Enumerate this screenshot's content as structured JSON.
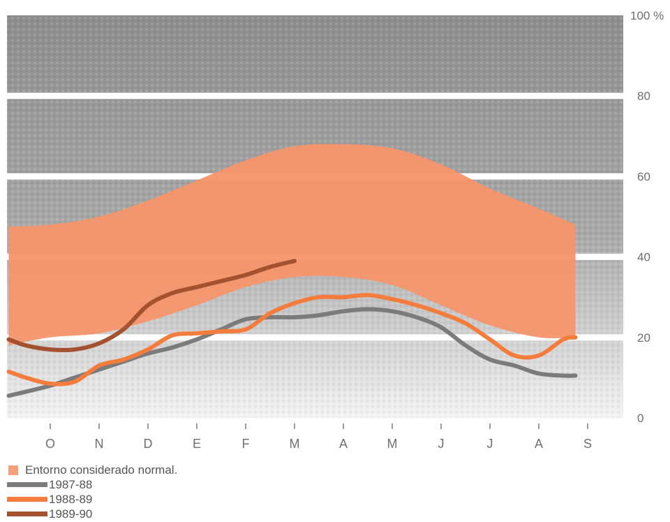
{
  "chart_data": {
    "type": "line",
    "title": "",
    "xlabel": "",
    "ylabel": "",
    "categories": [
      "O",
      "N",
      "D",
      "E",
      "F",
      "M",
      "A",
      "M",
      "J",
      "J",
      "A",
      "S"
    ],
    "y_tick_labels": [
      "0",
      "20",
      "40",
      "60",
      "80",
      "100 %"
    ],
    "y_tick_values": [
      0,
      20,
      40,
      60,
      80,
      100
    ],
    "ylim": [
      0,
      100
    ],
    "grid": true,
    "normal_range": {
      "name": "Entorno considerado normal.",
      "color": "#f4956a",
      "x": [
        -0.85,
        0,
        1,
        2,
        3,
        4,
        5,
        6,
        7,
        8,
        9,
        10,
        10.75
      ],
      "upper": [
        47.5,
        48,
        50,
        54,
        59,
        64,
        67.5,
        68,
        67,
        63,
        57,
        52,
        48
      ],
      "lower": [
        18,
        20,
        21,
        24,
        28,
        32.5,
        35,
        35,
        33,
        28,
        23,
        20,
        20
      ]
    },
    "series": [
      {
        "name": "1987-88",
        "color": "#7b7b7b",
        "x": [
          -0.85,
          -0.5,
          0,
          0.5,
          1,
          1.5,
          2,
          2.5,
          3,
          3.5,
          4,
          4.5,
          5,
          5.5,
          6,
          6.5,
          7,
          7.5,
          8,
          8.5,
          9,
          9.5,
          10,
          10.5,
          10.75
        ],
        "y": [
          5.5,
          6.5,
          8,
          10,
          12,
          14,
          16,
          17.5,
          19.5,
          22,
          24.5,
          25,
          25,
          25.5,
          26.5,
          27,
          26.5,
          25,
          22.5,
          18,
          14.5,
          13,
          11,
          10.5,
          10.5
        ]
      },
      {
        "name": "1988-89",
        "color": "#f47c3c",
        "x": [
          -0.85,
          -0.5,
          0,
          0.5,
          1,
          1.5,
          2,
          2.5,
          3,
          3.5,
          4,
          4.5,
          5,
          5.5,
          6,
          6.5,
          7,
          7.5,
          8,
          8.5,
          9,
          9.5,
          10,
          10.5,
          10.75
        ],
        "y": [
          11.5,
          10,
          8.5,
          9,
          13,
          14.5,
          17,
          20.5,
          21,
          21.5,
          22,
          26,
          28.5,
          30,
          30,
          30.5,
          29.5,
          28,
          26,
          23.5,
          19.5,
          15.5,
          15.5,
          19.5,
          20
        ]
      },
      {
        "name": "1989-90",
        "color": "#a3512e",
        "x": [
          -0.85,
          -0.5,
          0,
          0.5,
          1,
          1.5,
          2,
          2.5,
          3,
          3.5,
          4,
          4.5,
          5
        ],
        "y": [
          19.5,
          18,
          17,
          17,
          18.5,
          22,
          28,
          31,
          32.5,
          34,
          35.5,
          37.5,
          39
        ]
      }
    ]
  },
  "legend": {
    "normal_label": "Entorno considerado normal.",
    "s1_label": "1987-88",
    "s2_label": "1988-89",
    "s3_label": "1989-90"
  }
}
